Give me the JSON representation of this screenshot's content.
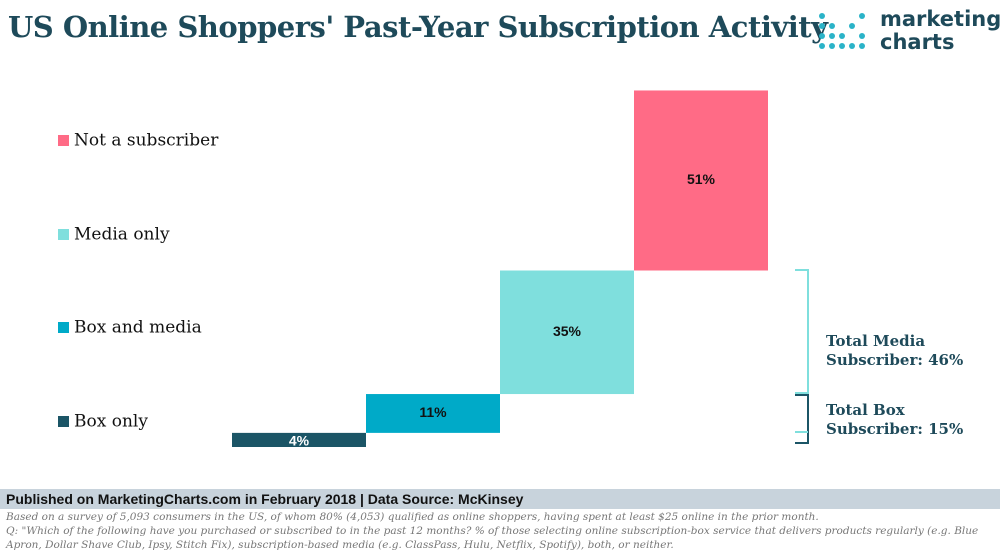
{
  "chart_data": {
    "type": "waterfall",
    "title": "US Online Shoppers' Past-Year Subscription Activity",
    "categories": [
      "Box only",
      "Box and media",
      "Media only",
      "Not a subscriber"
    ],
    "values": [
      4,
      11,
      35,
      51
    ],
    "value_labels": [
      "4%",
      "11%",
      "35%",
      "51%"
    ],
    "colors": [
      "#1b5566",
      "#00aac8",
      "#7fdfdd",
      "#ff6b86"
    ],
    "label_colors": [
      "#ffffff",
      "#111111",
      "#111111",
      "#111111"
    ],
    "annotations": [
      "Total Media Subscriber: 46%",
      "Total Box Subscriber: 15%"
    ]
  },
  "logo": [
    "marketing",
    "charts"
  ],
  "footer": {
    "source": "Published on MarketingCharts.com in February 2018 | Data Source: McKinsey",
    "note": "Based on a survey of 5,093 consumers in the US, of whom 80% (4,053) qualified as online shoppers, having spent at least $25 online in the prior month.",
    "question": "Q: \"Which of the following have you purchased or subscribed to in the past 12 months? % of those selecting online subscription-box service that delivers products regularly (e.g. Blue Apron, Dollar Shave Club, Ipsy, Stitch Fix), subscription-based media (e.g. ClassPass, Hulu, Netflix, Spotify), both, or neither."
  }
}
